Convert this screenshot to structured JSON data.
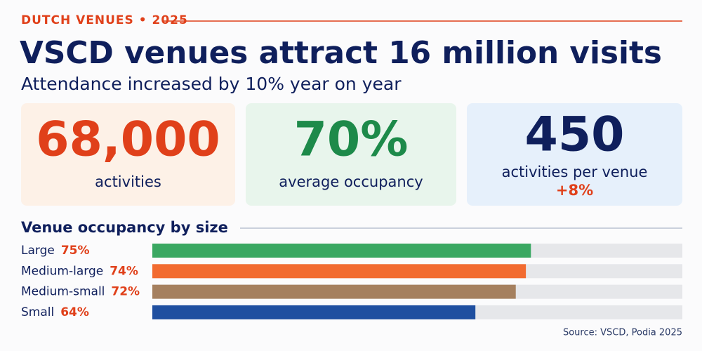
{
  "header": {
    "kicker": "DUTCH VENUES • 2025",
    "title": "VSCD venues attract 16 million visits",
    "subtitle": "Attendance increased by 10% year on year"
  },
  "stats": [
    {
      "value": "68,000",
      "label": "activities",
      "color": "#e0401a",
      "background": "#fdf1e7"
    },
    {
      "value": "70%",
      "label": "average occupancy",
      "color": "#1d8a4a",
      "background": "#e8f5ec"
    },
    {
      "value": "450",
      "label": "activities per venue",
      "change": "+8%",
      "color": "#0f1f5c",
      "background": "#e6f0fb"
    }
  ],
  "chart_data": {
    "type": "bar",
    "orientation": "horizontal",
    "title": "Venue occupancy by size",
    "categories": [
      "Large",
      "Medium-large",
      "Medium-small",
      "Small"
    ],
    "values": [
      75,
      74,
      72,
      64
    ],
    "value_labels": [
      "75%",
      "74%",
      "72%",
      "64%"
    ],
    "colors": [
      "#3aa862",
      "#f26b30",
      "#a5805f",
      "#1f4fa0"
    ],
    "xlim": [
      0,
      105
    ]
  },
  "source": "Source: VSCD, Podia 2025"
}
